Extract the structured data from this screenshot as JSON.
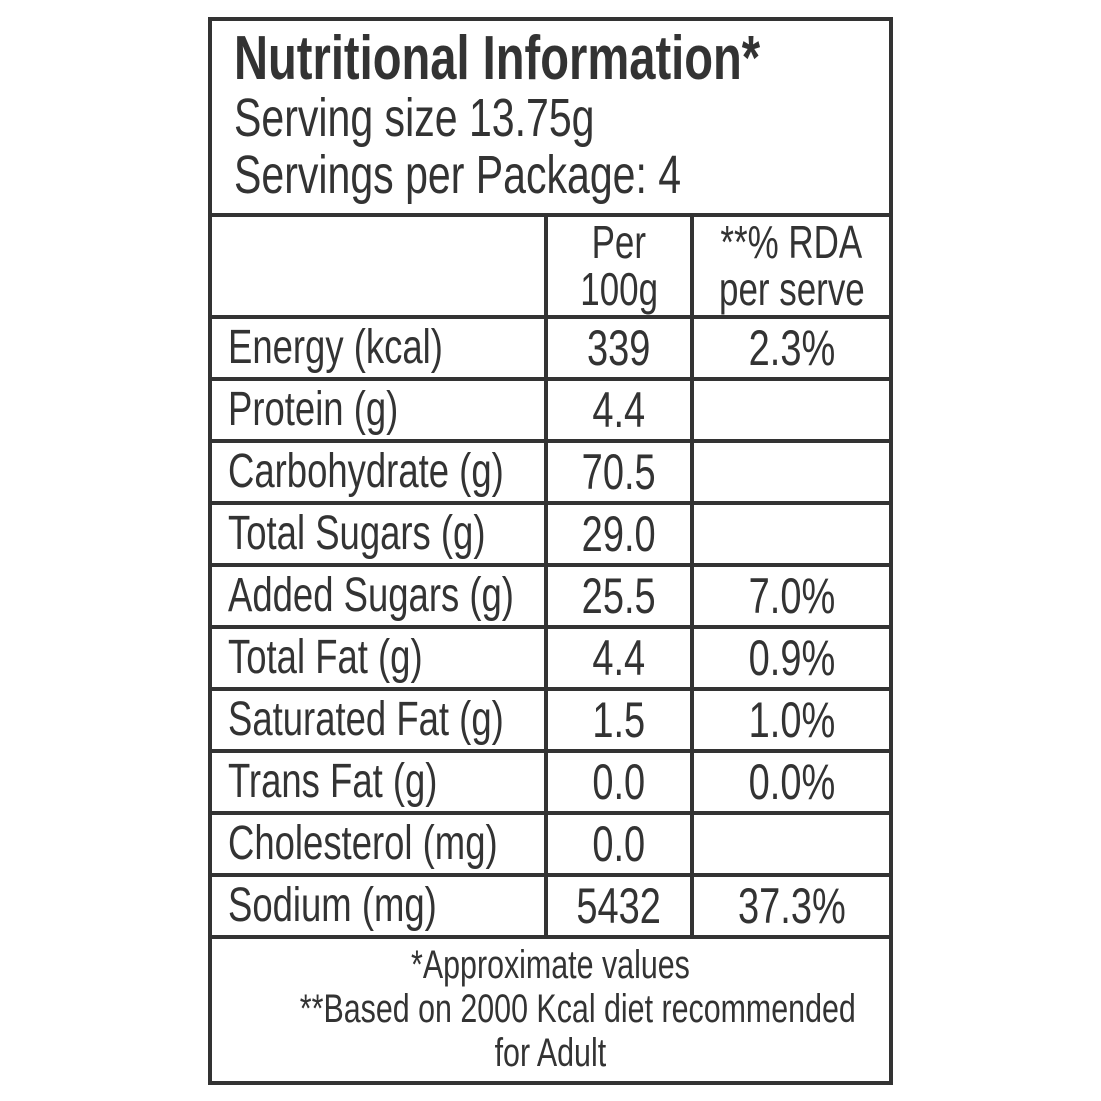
{
  "nutrition_label": {
    "title": "Nutritional Information*",
    "serving_size": "Serving size 13.75g",
    "servings_per_package": "Servings per Package: 4",
    "column_headers": {
      "per_100g_line1": "Per",
      "per_100g_line2": "100g",
      "rda_line1": "**% RDA",
      "rda_line2": "per serve"
    },
    "rows": [
      {
        "nutrient": "Energy (kcal)",
        "per_100g": "339",
        "rda": "2.3%"
      },
      {
        "nutrient": "Protein (g)",
        "per_100g": "4.4",
        "rda": ""
      },
      {
        "nutrient": "Carbohydrate (g)",
        "per_100g": "70.5",
        "rda": ""
      },
      {
        "nutrient": "Total Sugars (g)",
        "per_100g": "29.0",
        "rda": ""
      },
      {
        "nutrient": "Added Sugars (g)",
        "per_100g": "25.5",
        "rda": "7.0%"
      },
      {
        "nutrient": "Total Fat (g)",
        "per_100g": "4.4",
        "rda": "0.9%"
      },
      {
        "nutrient": "Saturated Fat (g)",
        "per_100g": "1.5",
        "rda": "1.0%"
      },
      {
        "nutrient": "Trans Fat (g)",
        "per_100g": "0.0",
        "rda": "0.0%"
      },
      {
        "nutrient": "Cholesterol (mg)",
        "per_100g": "0.0",
        "rda": ""
      },
      {
        "nutrient": "Sodium (mg)",
        "per_100g": "5432",
        "rda": "37.3%"
      }
    ],
    "footnotes": {
      "line1": "*Approximate values",
      "line2": "**Based on 2000 Kcal diet recommended",
      "line3": "for Adult"
    },
    "colors": {
      "text": "#333333",
      "border": "#333333",
      "background": "#ffffff"
    }
  }
}
